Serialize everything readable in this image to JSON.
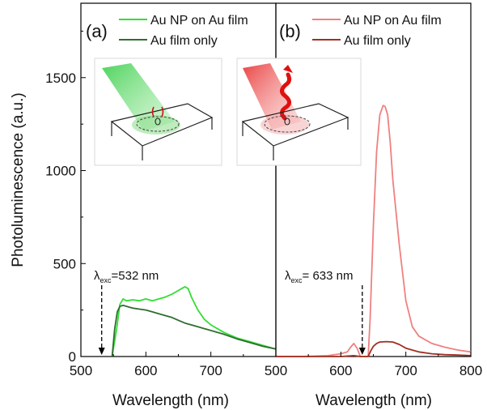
{
  "chart_data": [
    {
      "type": "line",
      "panel_label": "(a)",
      "xlabel": "Wavelength (nm)",
      "ylabel": "Photoluminescence (a.u.)",
      "xlim": [
        500,
        800
      ],
      "ylim": [
        0,
        1900
      ],
      "x_ticks": [
        500,
        600,
        700
      ],
      "x_tick_labels": [
        "500",
        "600",
        "700"
      ],
      "y_ticks": [
        0,
        500,
        1000,
        1500
      ],
      "y_tick_labels": [
        "0",
        "500",
        "1000",
        "1500"
      ],
      "legend_position": "top-right",
      "annotation": {
        "symbol": "λ",
        "subscript": "exc",
        "text": "=532 nm",
        "x": 532
      },
      "inset_icon": "green-laser-nanoparticle-sketch",
      "series": [
        {
          "name": "Au NP on Au film",
          "color": "#33dd33",
          "x": [
            548,
            555,
            560,
            565,
            570,
            580,
            590,
            600,
            610,
            620,
            630,
            640,
            650,
            655,
            660,
            665,
            670,
            680,
            690,
            700,
            720,
            740,
            760,
            780,
            800
          ],
          "y": [
            0,
            150,
            280,
            310,
            300,
            305,
            300,
            310,
            300,
            310,
            320,
            335,
            355,
            365,
            375,
            365,
            320,
            250,
            200,
            170,
            130,
            100,
            80,
            60,
            40
          ]
        },
        {
          "name": "Au film only",
          "color": "#2e6f2e",
          "x": [
            548,
            552,
            556,
            560,
            565,
            570,
            575,
            580,
            590,
            600,
            610,
            620,
            630,
            640,
            650,
            660,
            670,
            680,
            700,
            720,
            740,
            760,
            780,
            800
          ],
          "y": [
            0,
            150,
            240,
            270,
            275,
            270,
            265,
            260,
            255,
            250,
            240,
            230,
            220,
            210,
            195,
            180,
            170,
            160,
            140,
            120,
            95,
            75,
            55,
            40
          ]
        }
      ]
    },
    {
      "type": "line",
      "panel_label": "(b)",
      "xlabel": "Wavelength (nm)",
      "xlim": [
        500,
        800
      ],
      "ylim": [
        0,
        1900
      ],
      "x_ticks": [
        500,
        600,
        700,
        800
      ],
      "x_tick_labels": [
        "500",
        "600",
        "700",
        "800"
      ],
      "legend_position": "top-right",
      "annotation": {
        "symbol": "λ",
        "subscript": "exc",
        "text": "= 633 nm",
        "x": 633
      },
      "inset_icon": "red-laser-nanoparticle-sketch",
      "series": [
        {
          "name": "Au NP on Au film",
          "color": "#f08080",
          "x": [
            500,
            540,
            580,
            600,
            610,
            615,
            620,
            625,
            630,
            642,
            645,
            650,
            655,
            660,
            665,
            668,
            672,
            676,
            680,
            690,
            700,
            710,
            720,
            740,
            760,
            780,
            800
          ],
          "y": [
            0,
            0,
            5,
            15,
            25,
            50,
            70,
            45,
            0,
            0,
            200,
            700,
            1100,
            1300,
            1350,
            1345,
            1300,
            1150,
            950,
            600,
            300,
            160,
            110,
            70,
            50,
            35,
            25
          ]
        },
        {
          "name": "Au film only",
          "color": "#a03020",
          "x": [
            500,
            600,
            620,
            630,
            642,
            646,
            650,
            655,
            660,
            670,
            680,
            690,
            700,
            720,
            740,
            760,
            780,
            800
          ],
          "y": [
            0,
            0,
            5,
            0,
            0,
            30,
            55,
            70,
            78,
            80,
            78,
            65,
            45,
            25,
            15,
            10,
            8,
            5
          ]
        }
      ]
    }
  ]
}
